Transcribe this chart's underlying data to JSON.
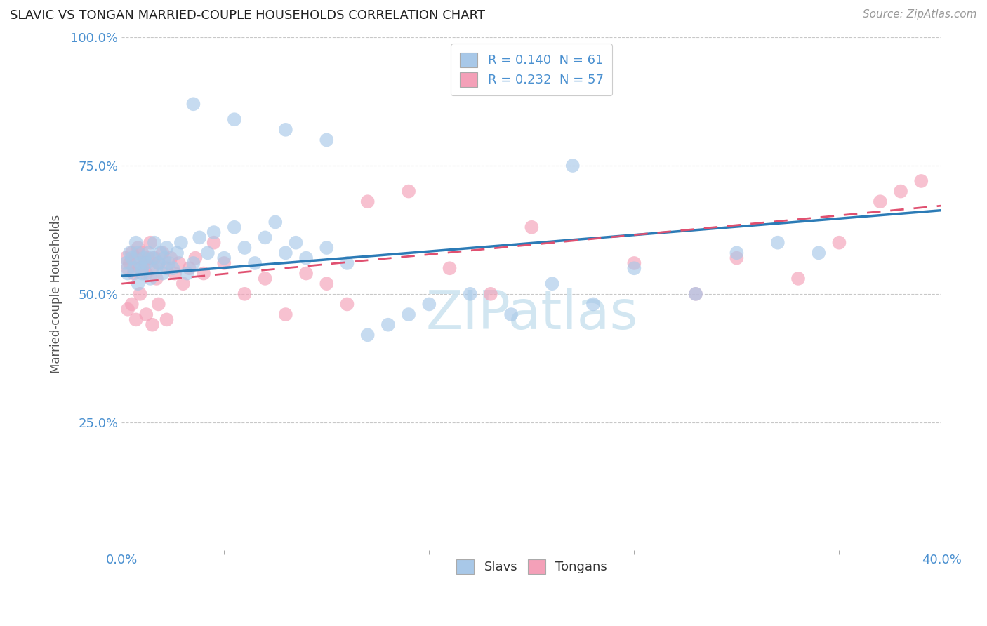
{
  "title": "SLAVIC VS TONGAN MARRIED-COUPLE HOUSEHOLDS CORRELATION CHART",
  "source": "Source: ZipAtlas.com",
  "ylabel_label": "Married-couple Households",
  "x_min": 0.0,
  "x_max": 0.4,
  "y_min": 0.0,
  "y_max": 1.0,
  "slavs_color": "#a8c8e8",
  "tongans_color": "#f4a0b8",
  "slavs_line_color": "#2c7bb6",
  "tongans_line_color": "#e05070",
  "background_color": "#ffffff",
  "grid_color": "#c8c8c8",
  "axis_color": "#4a90d0",
  "legend_box_color_slavs": "#a8c8e8",
  "legend_box_color_tongans": "#f4a0b8",
  "watermark_color": "#cde4f0",
  "slavs_R": 0.14,
  "slavs_N": 61,
  "tongans_R": 0.232,
  "tongans_N": 57,
  "slavs_intercept": 0.535,
  "slavs_slope": 0.32,
  "tongans_intercept": 0.52,
  "tongans_slope": 0.38
}
